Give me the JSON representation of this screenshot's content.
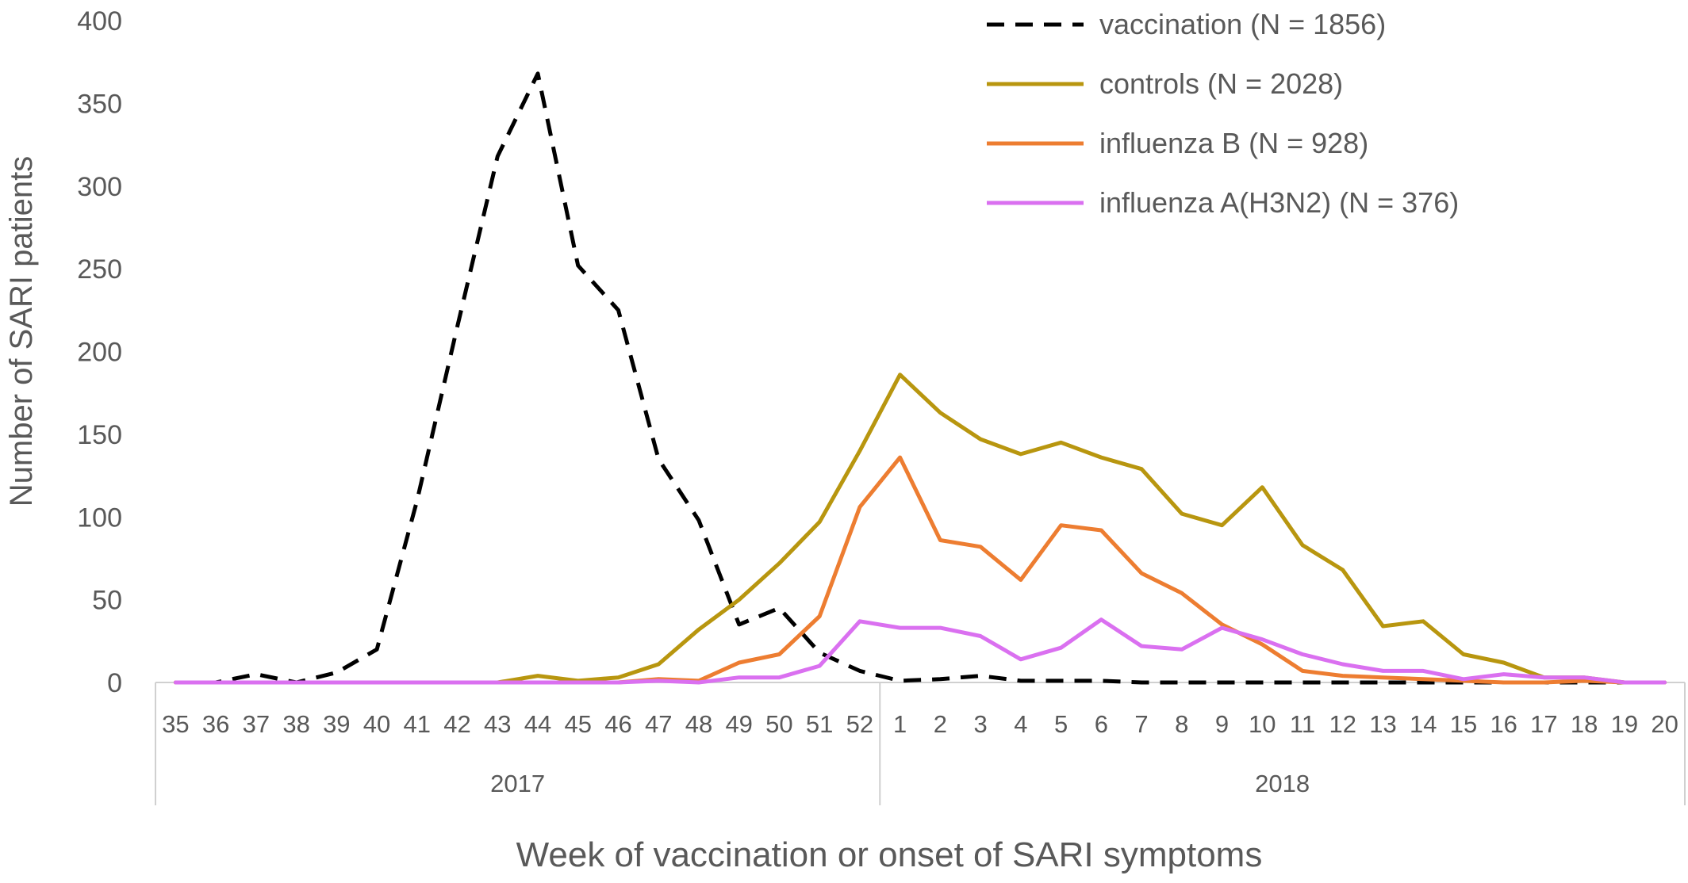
{
  "chart_data": {
    "type": "line",
    "xlabel": "Week of vaccination or onset of SARI symptoms",
    "ylabel": "Number of SARI patients",
    "ylim": [
      0,
      400
    ],
    "yticks": [
      0,
      50,
      100,
      150,
      200,
      250,
      300,
      350,
      400
    ],
    "grid": false,
    "legend_position": "top-right",
    "categories": [
      "35",
      "36",
      "37",
      "38",
      "39",
      "40",
      "41",
      "42",
      "43",
      "44",
      "45",
      "46",
      "47",
      "48",
      "49",
      "50",
      "51",
      "52",
      "1",
      "2",
      "3",
      "4",
      "5",
      "6",
      "7",
      "8",
      "9",
      "10",
      "11",
      "12",
      "13",
      "14",
      "15",
      "16",
      "17",
      "18",
      "19",
      "20"
    ],
    "groups": [
      {
        "label": "2017",
        "start": 0,
        "count": 18
      },
      {
        "label": "2018",
        "start": 18,
        "count": 20
      }
    ],
    "series": [
      {
        "name": "vaccination (N = 1856)",
        "color": "#000000",
        "dashed": true,
        "values": [
          0,
          0,
          5,
          0,
          6,
          20,
          110,
          215,
          318,
          368,
          252,
          225,
          135,
          98,
          35,
          45,
          18,
          7,
          1,
          2,
          4,
          1,
          1,
          1,
          0,
          0,
          0,
          0,
          0,
          0,
          0,
          0,
          0,
          0,
          0,
          0,
          0,
          0
        ]
      },
      {
        "name": "controls (N = 2028)",
        "color": "#B8960F",
        "dashed": false,
        "values": [
          0,
          0,
          0,
          0,
          0,
          0,
          0,
          0,
          0,
          4,
          1,
          3,
          11,
          32,
          50,
          72,
          97,
          140,
          186,
          163,
          147,
          138,
          145,
          136,
          129,
          102,
          95,
          118,
          83,
          68,
          34,
          37,
          17,
          12,
          3,
          3,
          0,
          0
        ]
      },
      {
        "name": "influenza B (N = 928)",
        "color": "#ED7D31",
        "dashed": false,
        "values": [
          0,
          0,
          0,
          0,
          0,
          0,
          0,
          0,
          0,
          0,
          0,
          0,
          2,
          1,
          12,
          17,
          40,
          106,
          136,
          86,
          82,
          62,
          95,
          92,
          66,
          54,
          35,
          23,
          7,
          4,
          3,
          2,
          1,
          0,
          0,
          1,
          0,
          0
        ]
      },
      {
        "name": "influenza A(H3N2) (N = 376)",
        "color": "#DA70F0",
        "dashed": false,
        "values": [
          0,
          0,
          0,
          0,
          0,
          0,
          0,
          0,
          0,
          0,
          0,
          0,
          1,
          0,
          3,
          3,
          10,
          37,
          33,
          33,
          28,
          14,
          21,
          38,
          22,
          20,
          33,
          26,
          17,
          11,
          7,
          7,
          2,
          5,
          3,
          3,
          0,
          0
        ]
      }
    ]
  }
}
